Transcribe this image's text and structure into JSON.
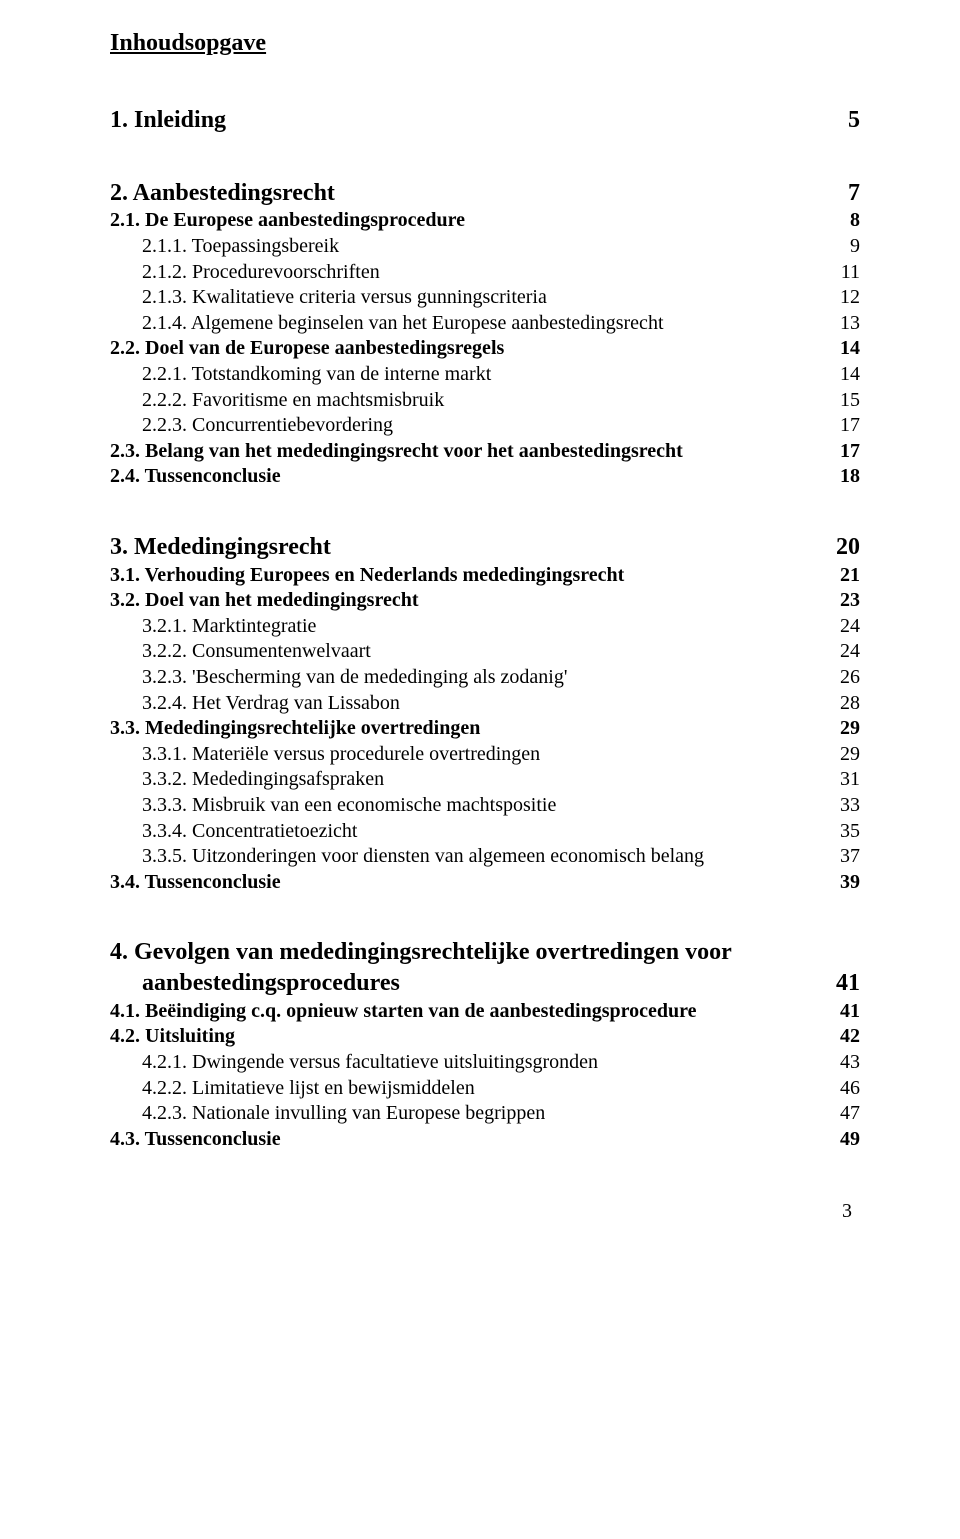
{
  "title": "Inhoudsopgave",
  "page_number": "3",
  "blocks": [
    {
      "entries": [
        {
          "level": 1,
          "label": "1. Inleiding",
          "page": "5"
        }
      ]
    },
    {
      "entries": [
        {
          "level": 1,
          "label": "2. Aanbestedingsrecht",
          "page": "7"
        },
        {
          "level": 2,
          "label": "2.1. De Europese aanbestedingsprocedure",
          "page": "8"
        },
        {
          "level": 3,
          "label": "2.1.1. Toepassingsbereik",
          "page": "9"
        },
        {
          "level": 3,
          "label": "2.1.2. Procedurevoorschriften",
          "page": "11"
        },
        {
          "level": 3,
          "label": "2.1.3. Kwalitatieve criteria versus gunningscriteria",
          "page": "12"
        },
        {
          "level": 3,
          "label": "2.1.4. Algemene beginselen van het Europese aanbestedingsrecht",
          "page": "13"
        },
        {
          "level": 2,
          "label": "2.2. Doel van de Europese aanbestedingsregels",
          "page": "14"
        },
        {
          "level": 3,
          "label": "2.2.1. Totstandkoming van de interne markt",
          "page": "14"
        },
        {
          "level": 3,
          "label": "2.2.2. Favoritisme en machtsmisbruik",
          "page": "15"
        },
        {
          "level": 3,
          "label": "2.2.3. Concurrentiebevordering",
          "page": "17"
        },
        {
          "level": 2,
          "label": "2.3. Belang van het mededingingsrecht voor het aanbestedingsrecht",
          "page": "17"
        },
        {
          "level": 2,
          "label": "2.4. Tussenconclusie",
          "page": "18"
        }
      ]
    },
    {
      "entries": [
        {
          "level": 1,
          "label": "3. Mededingingsrecht",
          "page": "20"
        },
        {
          "level": 2,
          "label": "3.1. Verhouding Europees en Nederlands mededingingsrecht",
          "page": "21"
        },
        {
          "level": 2,
          "label": "3.2. Doel van het mededingingsrecht",
          "page": "23"
        },
        {
          "level": 3,
          "label": "3.2.1. Marktintegratie",
          "page": "24"
        },
        {
          "level": 3,
          "label": "3.2.2. Consumentenwelvaart",
          "page": "24"
        },
        {
          "level": 3,
          "label": "3.2.3. 'Bescherming van de mededinging als zodanig'",
          "page": "26"
        },
        {
          "level": 3,
          "label": "3.2.4. Het Verdrag van Lissabon",
          "page": "28"
        },
        {
          "level": 2,
          "label": "3.3. Mededingingsrechtelijke overtredingen",
          "page": "29"
        },
        {
          "level": 3,
          "label": "3.3.1. Materiële versus procedurele overtredingen",
          "page": "29"
        },
        {
          "level": 3,
          "label": "3.3.2. Mededingingsafspraken",
          "page": "31"
        },
        {
          "level": 3,
          "label": "3.3.3. Misbruik van een economische machtspositie",
          "page": "33"
        },
        {
          "level": 3,
          "label": "3.3.4. Concentratietoezicht",
          "page": "35"
        },
        {
          "level": 3,
          "label": "3.3.5. Uitzonderingen voor diensten van algemeen economisch belang",
          "page": "37"
        },
        {
          "level": 2,
          "label": "3.4. Tussenconclusie",
          "page": "39"
        }
      ]
    },
    {
      "entries": [
        {
          "level": 1,
          "multi": true,
          "label1": "4. Gevolgen van mededingingsrechtelijke overtredingen voor",
          "label2": "aanbestedingsprocedures",
          "page": "41"
        },
        {
          "level": 2,
          "label": "4.1. Beëindiging c.q. opnieuw starten van de aanbestedingsprocedure",
          "page": "41"
        },
        {
          "level": 2,
          "label": "4.2. Uitsluiting",
          "page": "42"
        },
        {
          "level": 3,
          "label": "4.2.1. Dwingende versus facultatieve uitsluitingsgronden",
          "page": "43"
        },
        {
          "level": 3,
          "label": "4.2.2. Limitatieve lijst en bewijsmiddelen",
          "page": "46"
        },
        {
          "level": 3,
          "label": "4.2.3. Nationale invulling van Europese begrippen",
          "page": "47"
        },
        {
          "level": 2,
          "label": "4.3. Tussenconclusie",
          "page": "49"
        }
      ]
    }
  ]
}
